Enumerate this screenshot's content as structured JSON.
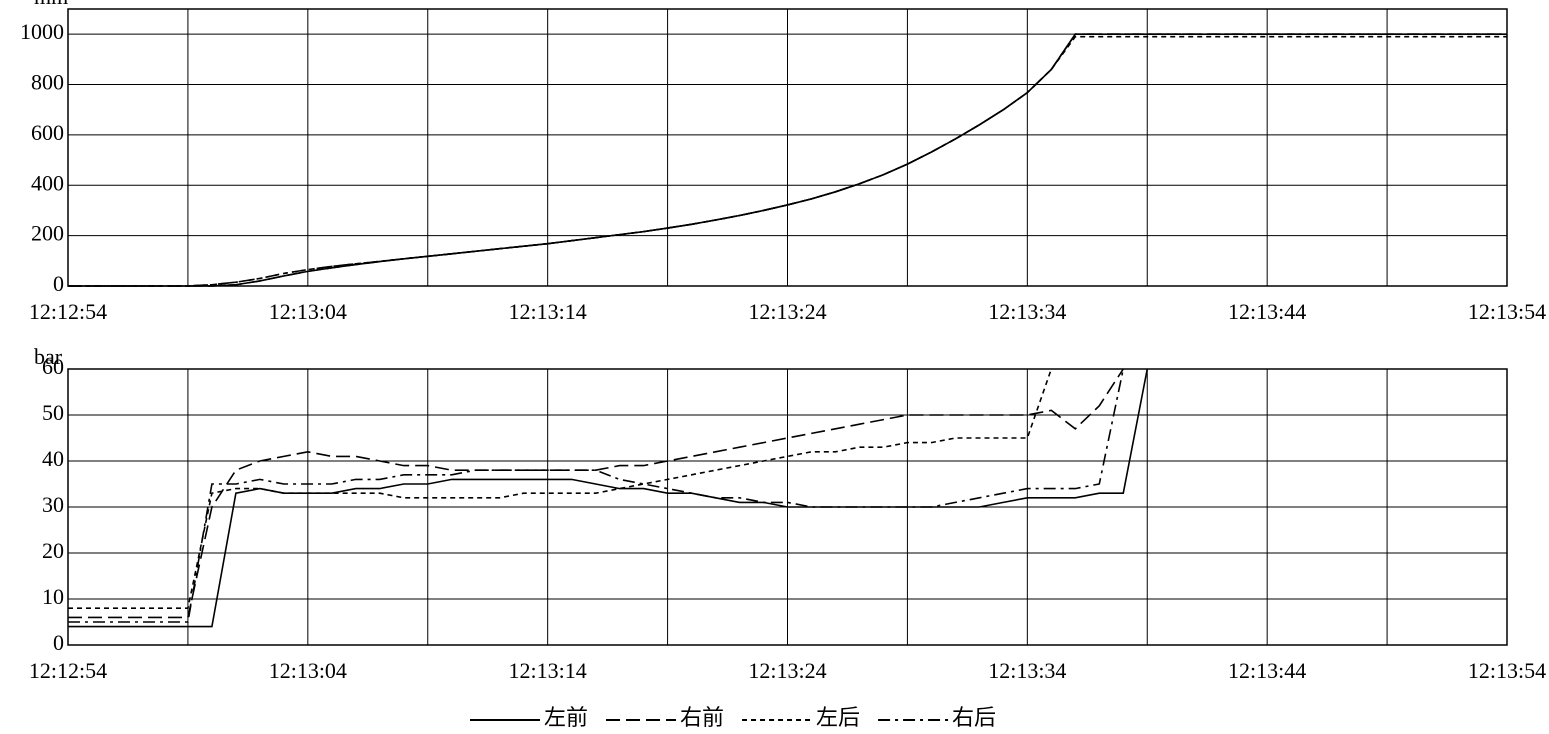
{
  "chart_data": [
    {
      "type": "line",
      "ylabel": "mm",
      "x": [
        "12:12:54",
        "12:12:55",
        "12:12:56",
        "12:12:57",
        "12:12:58",
        "12:12:59",
        "12:13:00",
        "12:13:01",
        "12:13:02",
        "12:13:03",
        "12:13:04",
        "12:13:05",
        "12:13:06",
        "12:13:07",
        "12:13:08",
        "12:13:09",
        "12:13:10",
        "12:13:11",
        "12:13:12",
        "12:13:13",
        "12:13:14",
        "12:13:15",
        "12:13:16",
        "12:13:17",
        "12:13:18",
        "12:13:19",
        "12:13:20",
        "12:13:21",
        "12:13:22",
        "12:13:23",
        "12:13:24",
        "12:13:25",
        "12:13:26",
        "12:13:27",
        "12:13:28",
        "12:13:29",
        "12:13:30",
        "12:13:31",
        "12:13:32",
        "12:13:33",
        "12:13:34",
        "12:13:35",
        "12:13:36",
        "12:13:37",
        "12:13:38",
        "12:13:39",
        "12:13:40",
        "12:13:41",
        "12:13:42",
        "12:13:43",
        "12:13:44",
        "12:13:45",
        "12:13:46",
        "12:13:47",
        "12:13:48",
        "12:13:49",
        "12:13:50",
        "12:13:51",
        "12:13:52",
        "12:13:53",
        "12:13:54"
      ],
      "series": [
        {
          "name": "左前",
          "color": "#000000",
          "style": "solid",
          "values": [
            0,
            0,
            0,
            0,
            0,
            0,
            0,
            5,
            20,
            40,
            58,
            72,
            85,
            97,
            108,
            118,
            128,
            138,
            148,
            158,
            168,
            180,
            192,
            204,
            216,
            230,
            245,
            262,
            280,
            300,
            322,
            346,
            374,
            406,
            442,
            484,
            532,
            584,
            640,
            700,
            768,
            860,
            1000,
            1000,
            1000,
            1000,
            1000,
            1000,
            1000,
            1000,
            1000,
            1000,
            1000,
            1000,
            1000,
            1000,
            1000,
            1000,
            1000,
            1000,
            1000
          ]
        },
        {
          "name": "右前",
          "color": "#000000",
          "style": "dashed",
          "values": [
            0,
            0,
            0,
            0,
            0,
            0,
            0,
            5,
            20,
            40,
            58,
            72,
            85,
            97,
            108,
            118,
            128,
            138,
            148,
            158,
            168,
            180,
            192,
            204,
            216,
            230,
            245,
            262,
            280,
            300,
            322,
            346,
            374,
            406,
            442,
            484,
            532,
            584,
            640,
            700,
            768,
            860,
            1000,
            1000,
            1000,
            1000,
            1000,
            1000,
            1000,
            1000,
            1000,
            1000,
            1000,
            1000,
            1000,
            1000,
            1000,
            1000,
            1000,
            1000,
            1000
          ]
        },
        {
          "name": "左后",
          "color": "#000000",
          "style": "dotted",
          "values": [
            0,
            0,
            0,
            0,
            0,
            0,
            5,
            15,
            30,
            50,
            65,
            78,
            88,
            98,
            108,
            118,
            128,
            138,
            148,
            158,
            168,
            180,
            192,
            204,
            216,
            230,
            245,
            262,
            280,
            300,
            322,
            346,
            374,
            406,
            442,
            484,
            532,
            584,
            640,
            700,
            768,
            860,
            990,
            990,
            990,
            990,
            990,
            990,
            990,
            990,
            990,
            990,
            990,
            990,
            990,
            990,
            990,
            990,
            990,
            990,
            990
          ]
        },
        {
          "name": "右后",
          "color": "#000000",
          "style": "dashdot",
          "values": [
            0,
            0,
            0,
            0,
            0,
            0,
            5,
            15,
            30,
            50,
            65,
            78,
            88,
            98,
            108,
            118,
            128,
            138,
            148,
            158,
            168,
            180,
            192,
            204,
            216,
            230,
            245,
            262,
            280,
            300,
            322,
            346,
            374,
            406,
            442,
            484,
            532,
            584,
            640,
            700,
            768,
            860,
            1000,
            1000,
            1000,
            1000,
            1000,
            1000,
            1000,
            1000,
            1000,
            1000,
            1000,
            1000,
            1000,
            1000,
            1000,
            1000,
            1000,
            1000,
            1000
          ]
        }
      ],
      "xlim": [
        "12:12:54",
        "12:13:54"
      ],
      "xticks": [
        "12:12:54",
        {
          "value": "12:12:59",
          "label": null
        },
        "12:13:04",
        {
          "value": "12:13:09",
          "label": null
        },
        "12:13:14",
        {
          "value": "12:13:19",
          "label": null
        },
        "12:13:24",
        {
          "value": "12:13:29",
          "label": null
        },
        "12:13:34",
        {
          "value": "12:13:39",
          "label": null
        },
        "12:13:44",
        {
          "value": "12:13:49",
          "label": null
        },
        "12:13:54"
      ],
      "ylim": [
        0,
        1100
      ],
      "yticks": [
        0,
        200,
        400,
        600,
        800,
        1000
      ],
      "grid": true
    },
    {
      "type": "line",
      "ylabel": "bar",
      "x": [
        "12:12:54",
        "12:12:55",
        "12:12:56",
        "12:12:57",
        "12:12:58",
        "12:12:59",
        "12:13:00",
        "12:13:01",
        "12:13:02",
        "12:13:03",
        "12:13:04",
        "12:13:05",
        "12:13:06",
        "12:13:07",
        "12:13:08",
        "12:13:09",
        "12:13:10",
        "12:13:11",
        "12:13:12",
        "12:13:13",
        "12:13:14",
        "12:13:15",
        "12:13:16",
        "12:13:17",
        "12:13:18",
        "12:13:19",
        "12:13:20",
        "12:13:21",
        "12:13:22",
        "12:13:23",
        "12:13:24",
        "12:13:25",
        "12:13:26",
        "12:13:27",
        "12:13:28",
        "12:13:29",
        "12:13:30",
        "12:13:31",
        "12:13:32",
        "12:13:33",
        "12:13:34",
        "12:13:35",
        "12:13:36",
        "12:13:37",
        "12:13:38",
        "12:13:39",
        "12:13:40",
        "12:13:41",
        "12:13:42",
        "12:13:43",
        "12:13:44",
        "12:13:45",
        "12:13:46",
        "12:13:47",
        "12:13:48",
        "12:13:49",
        "12:13:50",
        "12:13:51",
        "12:13:52",
        "12:13:53",
        "12:13:54"
      ],
      "series": [
        {
          "name": "左前",
          "color": "#000000",
          "style": "solid",
          "values": [
            4,
            4,
            4,
            4,
            4,
            4,
            4,
            33,
            34,
            33,
            33,
            33,
            34,
            34,
            35,
            35,
            36,
            36,
            36,
            36,
            36,
            36,
            35,
            34,
            34,
            33,
            33,
            32,
            31,
            31,
            30,
            30,
            30,
            30,
            30,
            30,
            30,
            30,
            30,
            31,
            32,
            32,
            32,
            33,
            33,
            60,
            null,
            null,
            null,
            null,
            null,
            null,
            null,
            null,
            null,
            null,
            null,
            null,
            null,
            null,
            null
          ]
        },
        {
          "name": "右前",
          "color": "#000000",
          "style": "dashed",
          "values": [
            6,
            6,
            6,
            6,
            6,
            6,
            30,
            38,
            40,
            41,
            42,
            41,
            41,
            40,
            39,
            39,
            38,
            38,
            38,
            38,
            38,
            38,
            38,
            39,
            39,
            40,
            41,
            42,
            43,
            44,
            45,
            46,
            47,
            48,
            49,
            50,
            50,
            50,
            50,
            50,
            50,
            51,
            47,
            52,
            60,
            null,
            null,
            null,
            null,
            null,
            null,
            null,
            null,
            null,
            null,
            null,
            null,
            null,
            null,
            null,
            null
          ]
        },
        {
          "name": "左后",
          "color": "#000000",
          "style": "dotted",
          "values": [
            8,
            8,
            8,
            8,
            8,
            8,
            33,
            34,
            34,
            33,
            33,
            33,
            33,
            33,
            32,
            32,
            32,
            32,
            32,
            33,
            33,
            33,
            33,
            34,
            35,
            36,
            37,
            38,
            39,
            40,
            41,
            42,
            42,
            43,
            43,
            44,
            44,
            45,
            45,
            45,
            45,
            60,
            null,
            null,
            null,
            null,
            null,
            null,
            null,
            null,
            null,
            null,
            null,
            null,
            null,
            null,
            null,
            null,
            null,
            null,
            null
          ]
        },
        {
          "name": "右后",
          "color": "#000000",
          "style": "dashdot",
          "values": [
            5,
            5,
            5,
            5,
            5,
            5,
            35,
            35,
            36,
            35,
            35,
            35,
            36,
            36,
            37,
            37,
            37,
            38,
            38,
            38,
            38,
            38,
            38,
            36,
            35,
            34,
            33,
            32,
            32,
            31,
            31,
            30,
            30,
            30,
            30,
            30,
            30,
            31,
            32,
            33,
            34,
            34,
            34,
            35,
            60,
            null,
            null,
            null,
            null,
            null,
            null,
            null,
            null,
            null,
            null,
            null,
            null,
            null,
            null,
            null,
            null
          ]
        }
      ],
      "xlim": [
        "12:12:54",
        "12:13:54"
      ],
      "xticks": [
        "12:12:54",
        {
          "value": "12:12:59",
          "label": null
        },
        "12:13:04",
        {
          "value": "12:13:09",
          "label": null
        },
        "12:13:14",
        {
          "value": "12:13:19",
          "label": null
        },
        "12:13:24",
        {
          "value": "12:13:29",
          "label": null
        },
        "12:13:34",
        {
          "value": "12:13:39",
          "label": null
        },
        "12:13:44",
        {
          "value": "12:13:49",
          "label": null
        },
        "12:13:54"
      ],
      "ylim": [
        0,
        60
      ],
      "yticks": [
        0,
        10,
        20,
        30,
        40,
        50,
        60
      ],
      "grid": true,
      "legend": "bottom"
    }
  ]
}
